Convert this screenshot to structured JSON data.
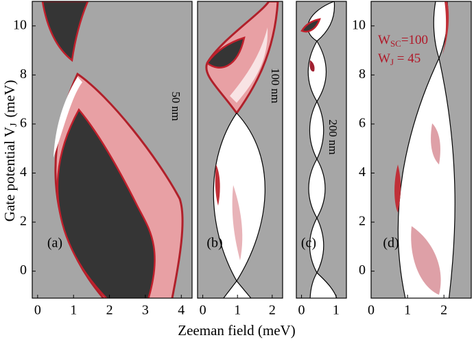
{
  "axis_labels": {
    "x": "Zeeman field  (meV)",
    "y": {
      "text": "Gate potential  V",
      "sub": "J",
      "unit": "(meV)"
    }
  },
  "chart_data": [
    {
      "type": "phase-diagram",
      "panel_label": "(a)",
      "annotation": "50 nm",
      "xlim": [
        -0.15,
        4.3
      ],
      "xticks": [
        0,
        1,
        2,
        3,
        4
      ],
      "ylim": [
        -1.1,
        11
      ],
      "yticks": [
        0,
        2,
        4,
        6,
        8,
        10
      ]
    },
    {
      "type": "phase-diagram",
      "panel_label": "(b)",
      "annotation": "100 nm",
      "xlim": [
        -0.15,
        2.3
      ],
      "xticks": [
        0,
        1,
        2
      ],
      "ylim": [
        -1.1,
        11
      ]
    },
    {
      "type": "phase-diagram",
      "panel_label": "(c)",
      "annotation": "200 nm",
      "xlim": [
        -0.15,
        1.3
      ],
      "xticks": [
        0,
        1
      ],
      "ylim": [
        -1.1,
        11
      ]
    },
    {
      "type": "phase-diagram",
      "panel_label": "(d)",
      "xlim": [
        0,
        2.75
      ],
      "xticks": [
        0,
        1,
        2
      ],
      "ylim": [
        -1.1,
        11
      ],
      "yticks": [
        0,
        2,
        4,
        6,
        8,
        10
      ],
      "annotation_lines": [
        {
          "text": "W",
          "sub": "SC",
          "rest": "=100"
        },
        {
          "text": "W",
          "sub": "J",
          "rest": " = 45"
        }
      ]
    }
  ]
}
